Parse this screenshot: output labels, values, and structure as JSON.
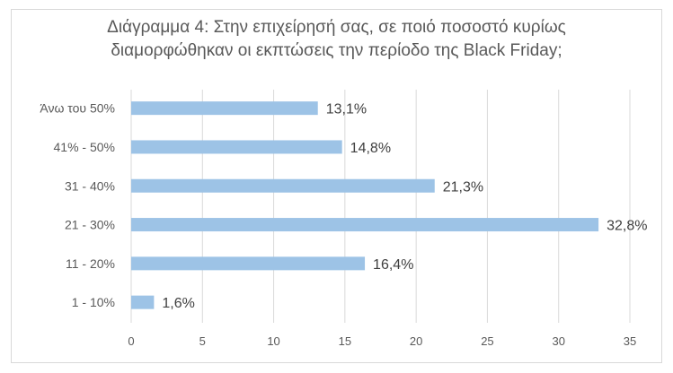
{
  "chart_data": {
    "type": "bar",
    "orientation": "horizontal",
    "title_lines": [
      "Διάγραμμα 4: Στην επιχείρησή σας, σε ποιό ποσοστό κυρίως",
      "διαμορφώθηκαν οι εκπτώσεις την περίοδο της Black Friday;"
    ],
    "categories": [
      "Άνω του 50%",
      "41% - 50%",
      "31 - 40%",
      "21 - 30%",
      "11 - 20%",
      "1 - 10%"
    ],
    "values": [
      13.1,
      14.8,
      21.3,
      32.8,
      16.4,
      1.6
    ],
    "data_labels": [
      "13,1%",
      "14,8%",
      "21,3%",
      "32,8%",
      "16,4%",
      "1,6%"
    ],
    "x_ticks": [
      0,
      5,
      10,
      15,
      20,
      25,
      30,
      35
    ],
    "xlim": [
      0,
      35
    ],
    "grid": true,
    "legend": "none",
    "bar_color": "#9dc3e6",
    "grid_color": "#d9d9d9",
    "text_color": "#595959",
    "label_color": "#404040"
  }
}
